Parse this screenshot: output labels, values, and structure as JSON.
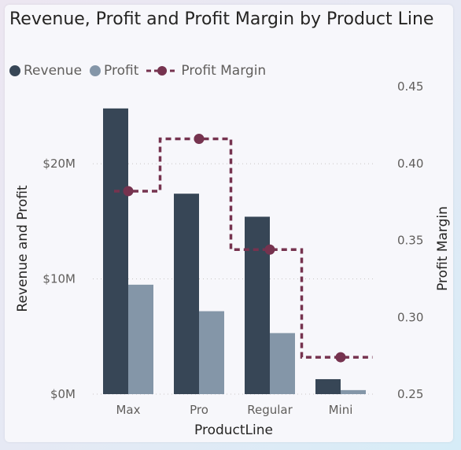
{
  "chart_data": {
    "type": "bar",
    "title": "Revenue, Profit and Profit Margin by Product Line",
    "categories": [
      "Max",
      "Pro",
      "Regular",
      "Mini"
    ],
    "series": [
      {
        "name": "Revenue",
        "kind": "bar",
        "axis": "left",
        "color": "#374656",
        "values": [
          24.8,
          17.4,
          15.4,
          1.3
        ]
      },
      {
        "name": "Profit",
        "kind": "bar",
        "axis": "left",
        "color": "#8496a8",
        "values": [
          9.5,
          7.2,
          5.3,
          0.35
        ]
      },
      {
        "name": "Profit Margin",
        "kind": "line",
        "axis": "right",
        "line_style": "dashed-step",
        "color": "#76334f",
        "values": [
          0.382,
          0.416,
          0.344,
          0.274
        ]
      }
    ],
    "xlabel": "ProductLine",
    "ylabel": "Revenue and Profit",
    "y2label": "Profit Margin",
    "ylim": [
      0,
      26.7
    ],
    "y2lim": [
      0.25,
      0.45
    ],
    "yticks": [
      {
        "value": 0,
        "label": "$0M"
      },
      {
        "value": 10,
        "label": "$10M"
      },
      {
        "value": 20,
        "label": "$20M"
      }
    ],
    "y2ticks": [
      {
        "value": 0.25,
        "label": "0.25"
      },
      {
        "value": 0.3,
        "label": "0.30"
      },
      {
        "value": 0.35,
        "label": "0.35"
      },
      {
        "value": 0.4,
        "label": "0.40"
      },
      {
        "value": 0.45,
        "label": "0.45"
      }
    ],
    "grid": true,
    "legend": "top-left"
  }
}
